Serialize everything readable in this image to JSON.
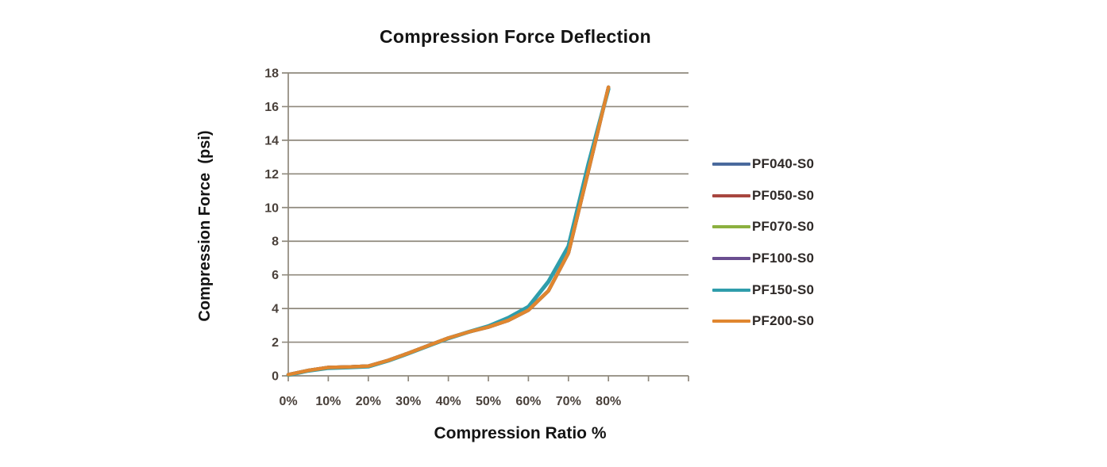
{
  "chart_data": {
    "type": "line",
    "title": "Compression Force Deflection",
    "xlabel": "Compression Ratio %",
    "ylabel": "Compression Force  (psi)",
    "x": [
      0,
      5,
      10,
      15,
      20,
      25,
      30,
      35,
      40,
      45,
      50,
      55,
      60,
      65,
      70,
      75,
      80
    ],
    "x_tick_labels": [
      "0%",
      "10%",
      "20%",
      "30%",
      "40%",
      "50%",
      "60%",
      "70%",
      "80%"
    ],
    "x_axis_unlabeled_ticks_percent": [
      90,
      100
    ],
    "xlim_percent": [
      0,
      100
    ],
    "ylim": [
      0,
      18
    ],
    "y_ticks": [
      0,
      2,
      4,
      6,
      8,
      10,
      12,
      14,
      16,
      18
    ],
    "grid": "horizontal",
    "legend_position": "right",
    "series": [
      {
        "name": "PF040-S0",
        "color": "#4a6a9d",
        "values": [
          0.07,
          0.32,
          0.5,
          0.53,
          0.58,
          0.92,
          1.35,
          1.8,
          2.25,
          2.6,
          2.9,
          3.3,
          3.9,
          5.05,
          7.3,
          12.2,
          17.15
        ]
      },
      {
        "name": "PF050-S0",
        "color": "#a8463f",
        "values": [
          0.07,
          0.32,
          0.5,
          0.53,
          0.58,
          0.92,
          1.35,
          1.8,
          2.25,
          2.6,
          2.9,
          3.3,
          3.9,
          5.05,
          7.3,
          12.2,
          17.15
        ]
      },
      {
        "name": "PF070-S0",
        "color": "#8cb03f",
        "values": [
          0.07,
          0.32,
          0.5,
          0.53,
          0.58,
          0.92,
          1.35,
          1.8,
          2.25,
          2.6,
          2.9,
          3.3,
          3.9,
          5.05,
          7.3,
          12.2,
          17.15
        ]
      },
      {
        "name": "PF100-S0",
        "color": "#6a4e90",
        "values": [
          0.07,
          0.32,
          0.5,
          0.53,
          0.58,
          0.92,
          1.35,
          1.8,
          2.25,
          2.6,
          2.9,
          3.3,
          3.9,
          5.05,
          7.3,
          12.2,
          17.15
        ]
      },
      {
        "name": "PF150-S0",
        "color": "#2f9dab",
        "values": [
          0.05,
          0.3,
          0.46,
          0.5,
          0.55,
          0.9,
          1.33,
          1.78,
          2.23,
          2.6,
          2.95,
          3.45,
          4.1,
          5.6,
          7.7,
          12.6,
          17.05
        ]
      },
      {
        "name": "PF200-S0",
        "color": "#e0862f",
        "values": [
          0.07,
          0.32,
          0.5,
          0.53,
          0.58,
          0.92,
          1.35,
          1.8,
          2.25,
          2.6,
          2.9,
          3.3,
          3.9,
          5.05,
          7.3,
          12.2,
          17.15
        ]
      }
    ],
    "colors": {
      "grid": "#8f897d",
      "axis": "#8f897d",
      "tick_text": "#4a413b",
      "title_text": "#141414",
      "legend_text": "#2e2927"
    }
  }
}
